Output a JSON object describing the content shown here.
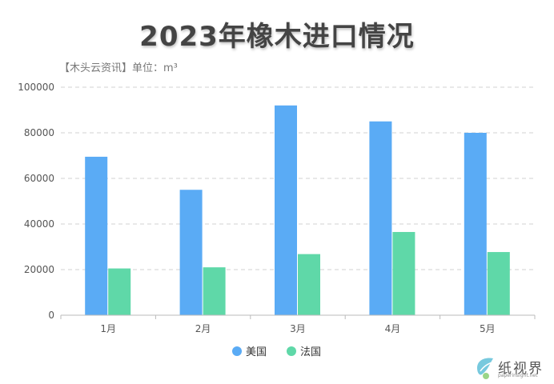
{
  "title": "2023年橡木进口情况",
  "subtitle": "【木头云资讯】单位：m³",
  "watermark": {
    "name": "纸视界",
    "url": "paperinsight.net"
  },
  "chart_data": {
    "type": "bar",
    "categories": [
      "1月",
      "2月",
      "3月",
      "4月",
      "5月"
    ],
    "series": [
      {
        "name": "美国",
        "color": "#5aabf5",
        "values": [
          69500,
          55000,
          92000,
          85000,
          80000
        ]
      },
      {
        "name": "法国",
        "color": "#5fd8a8",
        "values": [
          20500,
          21000,
          26800,
          36500,
          27700
        ]
      }
    ],
    "ylim": [
      0,
      100000
    ],
    "yticks": [
      0,
      20000,
      40000,
      60000,
      80000,
      100000
    ],
    "grid": true,
    "legend": "bottom-center"
  }
}
